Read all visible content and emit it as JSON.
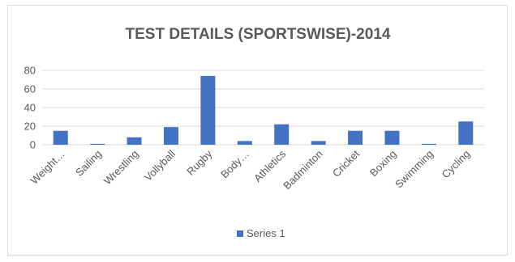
{
  "chart_data": {
    "type": "bar",
    "title": "TEST DETAILS (SPORTSWISE)-2014",
    "xlabel": "",
    "ylabel": "",
    "categories": [
      "Weight…",
      "Sailing",
      "Wrestling",
      "Vollyball",
      "Rugby",
      "Body…",
      "Athletics",
      "Badminton",
      "Cricket",
      "Boxing",
      "Swimming",
      "Cycling"
    ],
    "series": [
      {
        "name": "Series 1",
        "values": [
          15,
          1,
          8,
          19,
          74,
          4,
          22,
          4,
          15,
          15,
          1,
          25
        ]
      }
    ],
    "y_ticks": [
      "0",
      "20",
      "40",
      "60",
      "80"
    ],
    "ylim": [
      0,
      80
    ],
    "grid": true,
    "legend_position": "bottom",
    "colors": {
      "bar": "#4472c4",
      "grid": "#d9d9d9",
      "text": "#595959"
    }
  }
}
